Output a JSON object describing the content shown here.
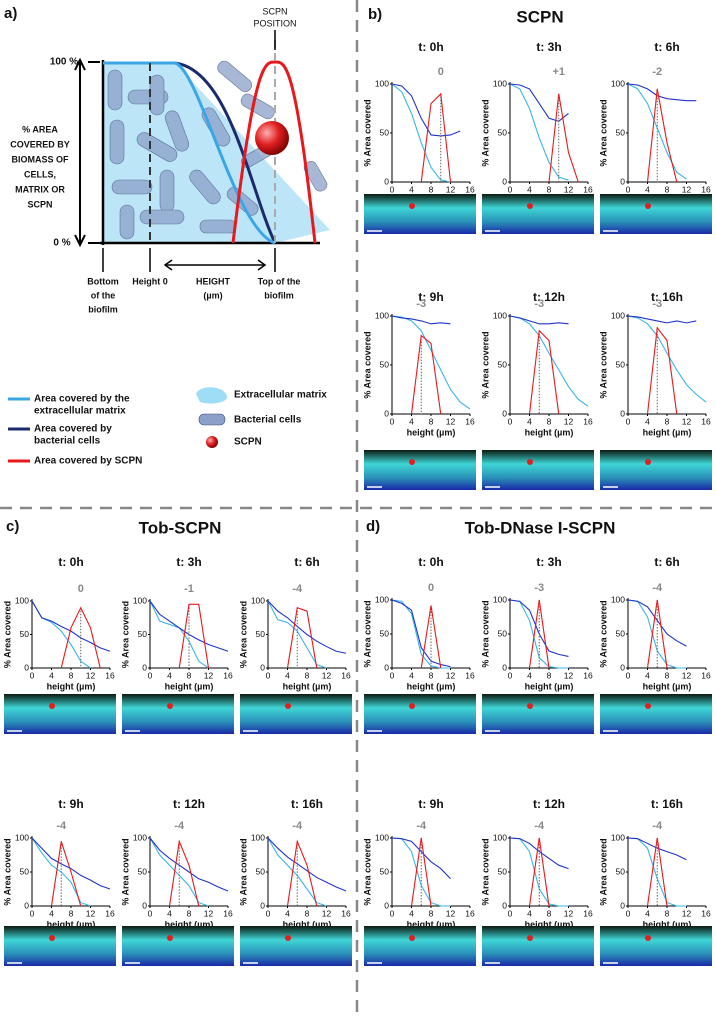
{
  "panel_a": {
    "label": "a)",
    "scpn_position": [
      "SCPN",
      "POSITION"
    ],
    "y_top": "100 %",
    "y_bottom": "0 %",
    "y_axis_label": [
      "% AREA",
      "COVERED BY",
      "BIOMASS OF",
      "CELLS,",
      "MATRIX OR",
      "SCPN"
    ],
    "bottom_label": [
      "Bottom",
      "of the",
      "biofilm"
    ],
    "height0_label": "Height 0",
    "x_axis_label": [
      "HEIGHT",
      "(µm)"
    ],
    "top_label": [
      "Top of the",
      "biofilm"
    ]
  },
  "legend": {
    "matrix_curve": [
      "Area covered by the",
      "extracellular matrix"
    ],
    "cells_curve": [
      "Area covered by",
      "bacterial cells"
    ],
    "scpn_curve": "Area covered by SCPN",
    "matrix": "Extracellular matrix",
    "cells": "Bacterial cells",
    "scpn": "SCPN"
  },
  "panels": [
    {
      "label": "b)",
      "title": "SCPN",
      "ylabel": "% Area covered",
      "xlabel": "height (µm)",
      "x": [
        0,
        2,
        4,
        6,
        8,
        10,
        12,
        14,
        16
      ],
      "xlim": [
        0,
        16
      ],
      "ylim": [
        0,
        100
      ],
      "xticks": [
        0,
        4,
        8,
        12,
        16
      ],
      "yticks": [
        0,
        50,
        100
      ],
      "colors": [
        "#38b6e8",
        "#2233cc",
        "#e8181c"
      ],
      "plots": [
        {
          "time": "t: 0h",
          "shift": "0",
          "series": [
            [
              100,
              92,
              70,
              40,
              15,
              2,
              0,
              null,
              null
            ],
            [
              100,
              98,
              88,
              65,
              48,
              47,
              48,
              52,
              null
            ],
            [
              null,
              null,
              null,
              0,
              80,
              90,
              0,
              null,
              null
            ]
          ]
        },
        {
          "time": "t: 3h",
          "shift": "+1",
          "series": [
            [
              100,
              95,
              75,
              45,
              20,
              5,
              2,
              null,
              null
            ],
            [
              100,
              99,
              95,
              80,
              65,
              62,
              70,
              null,
              null
            ],
            [
              null,
              null,
              null,
              null,
              0,
              90,
              30,
              0,
              null
            ]
          ]
        },
        {
          "time": "t: 6h",
          "shift": "-2",
          "series": [
            [
              100,
              95,
              80,
              55,
              30,
              10,
              3,
              null,
              null
            ],
            [
              100,
              99,
              95,
              88,
              85,
              84,
              83,
              83,
              null
            ],
            [
              null,
              null,
              0,
              95,
              40,
              0,
              null,
              null,
              null
            ]
          ]
        },
        {
          "time": "t: 9h",
          "shift": "-3",
          "series": [
            [
              100,
              99,
              95,
              85,
              65,
              45,
              25,
              12,
              5
            ],
            [
              100,
              98,
              97,
              95,
              92,
              93,
              92,
              null,
              null
            ],
            [
              null,
              null,
              0,
              80,
              72,
              0,
              null,
              null,
              null
            ]
          ]
        },
        {
          "time": "t: 12h",
          "shift": "-3",
          "series": [
            [
              100,
              98,
              92,
              80,
              62,
              45,
              28,
              15,
              8
            ],
            [
              100,
              98,
              95,
              92,
              92,
              93,
              92,
              null,
              null
            ],
            [
              null,
              null,
              0,
              85,
              75,
              0,
              null,
              null,
              null
            ]
          ]
        },
        {
          "time": "t: 16h",
          "shift": "-3",
          "series": [
            [
              100,
              98,
              92,
              80,
              62,
              45,
              30,
              20,
              12
            ],
            [
              100,
              99,
              97,
              95,
              93,
              95,
              93,
              95,
              null
            ],
            [
              null,
              null,
              0,
              88,
              75,
              0,
              null,
              null,
              null
            ]
          ]
        }
      ]
    },
    {
      "label": "c)",
      "title": "Tob-SCPN",
      "ylabel": "% Area covered",
      "xlabel": "height (µm)",
      "x": [
        0,
        2,
        4,
        6,
        8,
        10,
        12,
        14,
        16
      ],
      "xlim": [
        0,
        16
      ],
      "ylim": [
        0,
        100
      ],
      "xticks": [
        0,
        4,
        8,
        12,
        16
      ],
      "yticks": [
        0,
        50,
        100
      ],
      "colors": [
        "#38b6e8",
        "#2233cc",
        "#e8181c"
      ],
      "plots": [
        {
          "time": "t: 0h",
          "shift": "0",
          "series": [
            [
              100,
              75,
              68,
              55,
              35,
              10,
              0,
              null,
              null
            ],
            [
              100,
              75,
              70,
              62,
              55,
              45,
              38,
              30,
              25
            ],
            [
              null,
              null,
              null,
              0,
              60,
              90,
              60,
              0,
              null
            ]
          ]
        },
        {
          "time": "t: 3h",
          "shift": "-1",
          "series": [
            [
              100,
              70,
              65,
              60,
              40,
              10,
              0,
              null,
              null
            ],
            [
              100,
              80,
              70,
              60,
              50,
              42,
              35,
              30,
              25
            ],
            [
              null,
              null,
              null,
              0,
              95,
              95,
              0,
              null,
              null
            ]
          ]
        },
        {
          "time": "t: 6h",
          "shift": "-4",
          "series": [
            [
              100,
              72,
              68,
              55,
              30,
              5,
              0,
              null,
              null
            ],
            [
              100,
              85,
              75,
              62,
              50,
              40,
              32,
              25,
              22
            ],
            [
              null,
              null,
              0,
              90,
              85,
              0,
              null,
              null,
              null
            ]
          ]
        },
        {
          "time": "t: 9h",
          "shift": "-4",
          "series": [
            [
              100,
              78,
              60,
              50,
              35,
              5,
              0,
              null,
              null
            ],
            [
              100,
              85,
              70,
              62,
              55,
              45,
              38,
              30,
              25
            ],
            [
              null,
              null,
              0,
              95,
              50,
              0,
              null,
              null,
              null
            ]
          ]
        },
        {
          "time": "t: 12h",
          "shift": "-4",
          "series": [
            [
              100,
              75,
              60,
              45,
              30,
              5,
              0,
              null,
              null
            ],
            [
              100,
              82,
              70,
              60,
              50,
              40,
              35,
              28,
              22
            ],
            [
              null,
              null,
              0,
              95,
              60,
              0,
              null,
              null,
              null
            ]
          ]
        },
        {
          "time": "t: 16h",
          "shift": "-4",
          "series": [
            [
              100,
              75,
              60,
              45,
              25,
              5,
              0,
              null,
              null
            ],
            [
              100,
              85,
              72,
              62,
              52,
              42,
              35,
              28,
              22
            ],
            [
              null,
              null,
              0,
              95,
              60,
              0,
              null,
              null,
              null
            ]
          ]
        }
      ]
    },
    {
      "label": "d)",
      "title": "Tob-DNase I-SCPN",
      "ylabel": "% Area covered",
      "xlabel": "height (µm)",
      "x": [
        0,
        2,
        4,
        6,
        8,
        10,
        12,
        14,
        16
      ],
      "xlim": [
        0,
        16
      ],
      "ylim": [
        0,
        100
      ],
      "xticks": [
        0,
        4,
        8,
        12,
        16
      ],
      "yticks": [
        0,
        50,
        100
      ],
      "colors": [
        "#38b6e8",
        "#2233cc",
        "#e8181c"
      ],
      "plots": [
        {
          "time": "t: 0h",
          "shift": "0",
          "series": [
            [
              100,
              98,
              80,
              20,
              3,
              0,
              0,
              null,
              null
            ],
            [
              100,
              95,
              85,
              30,
              10,
              5,
              2,
              null,
              null
            ],
            [
              null,
              null,
              null,
              0,
              92,
              0,
              null,
              null,
              null
            ]
          ]
        },
        {
          "time": "t: 3h",
          "shift": "-3",
          "series": [
            [
              100,
              98,
              70,
              15,
              2,
              0,
              0,
              null,
              null
            ],
            [
              100,
              98,
              85,
              50,
              25,
              20,
              17,
              null,
              null
            ],
            [
              null,
              null,
              0,
              100,
              0,
              null,
              null,
              null,
              null
            ]
          ]
        },
        {
          "time": "t: 6h",
          "shift": "-4",
          "series": [
            [
              100,
              98,
              75,
              25,
              5,
              0,
              0,
              null,
              null
            ],
            [
              100,
              98,
              90,
              70,
              50,
              40,
              32,
              null,
              null
            ],
            [
              null,
              null,
              0,
              100,
              0,
              null,
              null,
              null,
              null
            ]
          ]
        },
        {
          "time": "t: 9h",
          "shift": "-4",
          "series": [
            [
              100,
              99,
              80,
              30,
              5,
              0,
              0,
              null,
              null
            ],
            [
              100,
              99,
              95,
              80,
              65,
              55,
              40,
              null,
              null
            ],
            [
              null,
              null,
              0,
              100,
              0,
              null,
              null,
              null,
              null
            ]
          ]
        },
        {
          "time": "t: 12h",
          "shift": "-4",
          "series": [
            [
              100,
              99,
              80,
              25,
              3,
              0,
              0,
              null,
              null
            ],
            [
              100,
              99,
              92,
              80,
              70,
              60,
              55,
              null,
              null
            ],
            [
              null,
              null,
              0,
              100,
              0,
              null,
              null,
              null,
              null
            ]
          ]
        },
        {
          "time": "t: 16h",
          "shift": "-4",
          "series": [
            [
              100,
              99,
              85,
              40,
              5,
              0,
              0,
              null,
              null
            ],
            [
              100,
              99,
              92,
              85,
              80,
              75,
              68,
              null,
              null
            ],
            [
              null,
              null,
              0,
              100,
              0,
              null,
              null,
              null,
              null
            ]
          ]
        }
      ]
    }
  ]
}
